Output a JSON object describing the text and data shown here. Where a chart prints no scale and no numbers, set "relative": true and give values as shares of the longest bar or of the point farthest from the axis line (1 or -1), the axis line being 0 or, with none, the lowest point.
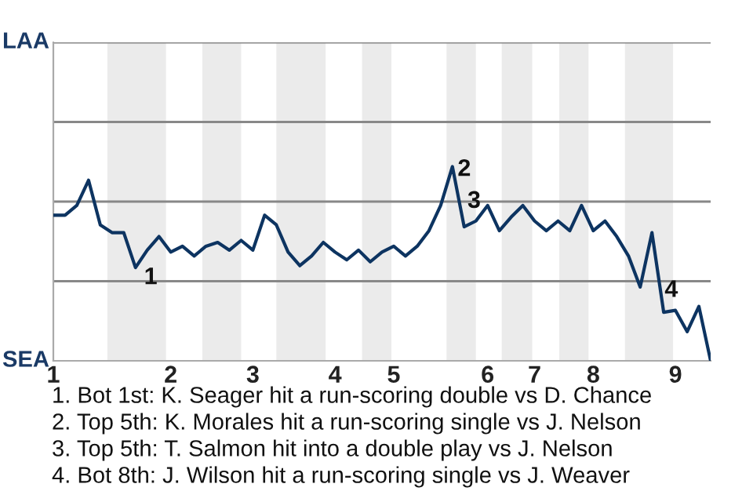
{
  "chart_data": {
    "type": "line",
    "relative": true,
    "categories": [
      "1",
      null,
      null,
      null,
      null,
      null,
      null,
      null,
      null,
      null,
      "2",
      null,
      null,
      null,
      null,
      null,
      null,
      "3",
      null,
      null,
      null,
      null,
      null,
      null,
      "4",
      null,
      null,
      null,
      null,
      "5",
      null,
      null,
      null,
      null,
      null,
      null,
      null,
      "6",
      null,
      null,
      null,
      "7",
      null,
      null,
      null,
      null,
      "8",
      null,
      null,
      null,
      null,
      null,
      null,
      "9",
      null,
      null,
      null
    ],
    "series": [
      {
        "color": "#0d3461",
        "values": [
          0.75,
          0.75,
          0.8,
          0.93,
          0.7,
          0.66,
          0.66,
          0.48,
          0.57,
          0.64,
          0.56,
          0.59,
          0.54,
          0.59,
          0.61,
          0.57,
          0.62,
          0.57,
          0.75,
          0.7,
          0.56,
          0.49,
          0.54,
          0.61,
          0.56,
          0.52,
          0.57,
          0.51,
          0.56,
          0.59,
          0.54,
          0.59,
          0.67,
          0.8,
          1,
          0.69,
          0.72,
          0.8,
          0.67,
          0.74,
          0.8,
          0.72,
          0.67,
          0.72,
          0.67,
          0.8,
          0.67,
          0.72,
          0.64,
          0.54,
          0.38,
          0.66,
          0.25,
          0.26,
          0.15,
          0.28,
          0
        ]
      }
    ],
    "marker": "none",
    "line_style": "solid",
    "ref_lines": [
      {
        "axis": "y",
        "value": 0.41,
        "color": "#888888"
      },
      {
        "axis": "y",
        "value": 0.82,
        "color": "#888888"
      }
    ],
    "annotations": [
      "LAA",
      "SEA",
      "1",
      "2",
      "3",
      "4",
      "1. Bot 1st: K. Seager hit a run-scoring double vs D. Chance",
      "2. Top 5th: K. Morales hit a run-scoring single vs J. Nelson",
      "3. Top 5th: T. Salmon hit into a double play vs J. Nelson",
      "4. Bot 8th: J. Wilson hit a run-scoring single vs J. Weaver"
    ]
  }
}
